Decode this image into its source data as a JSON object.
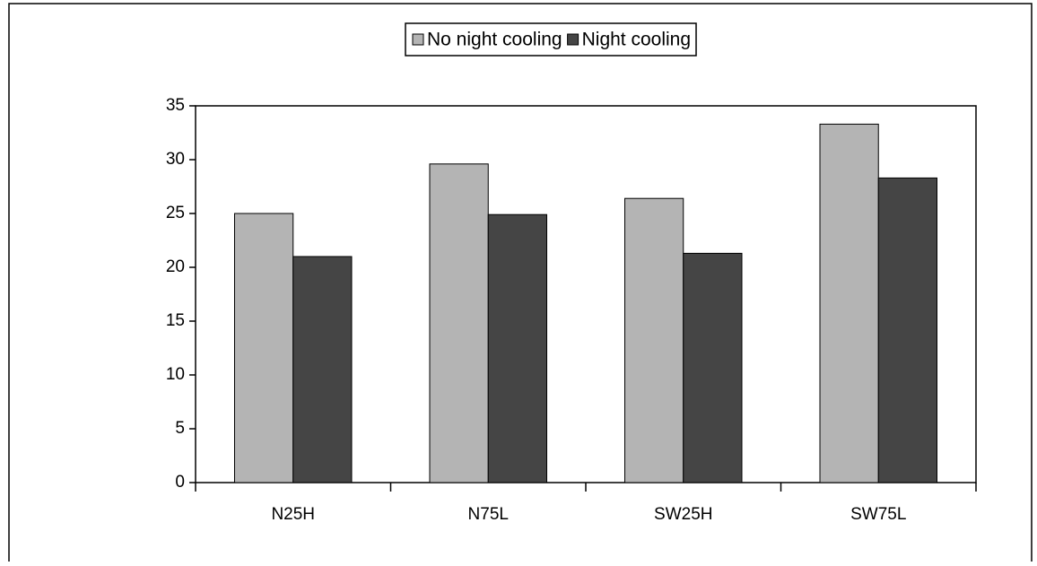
{
  "chart_data": {
    "type": "bar",
    "categories": [
      "N25H",
      "N75L",
      "SW25H",
      "SW75L"
    ],
    "series": [
      {
        "name": "No night cooling",
        "color": "#b4b4b4",
        "values": [
          25,
          29.6,
          26.4,
          33.3
        ]
      },
      {
        "name": "Night cooling",
        "color": "#454545",
        "values": [
          21,
          24.9,
          21.3,
          28.3
        ]
      }
    ],
    "ylim": [
      0,
      35
    ],
    "yticks": [
      0,
      5,
      10,
      15,
      20,
      25,
      30,
      35
    ],
    "legend": "top"
  }
}
